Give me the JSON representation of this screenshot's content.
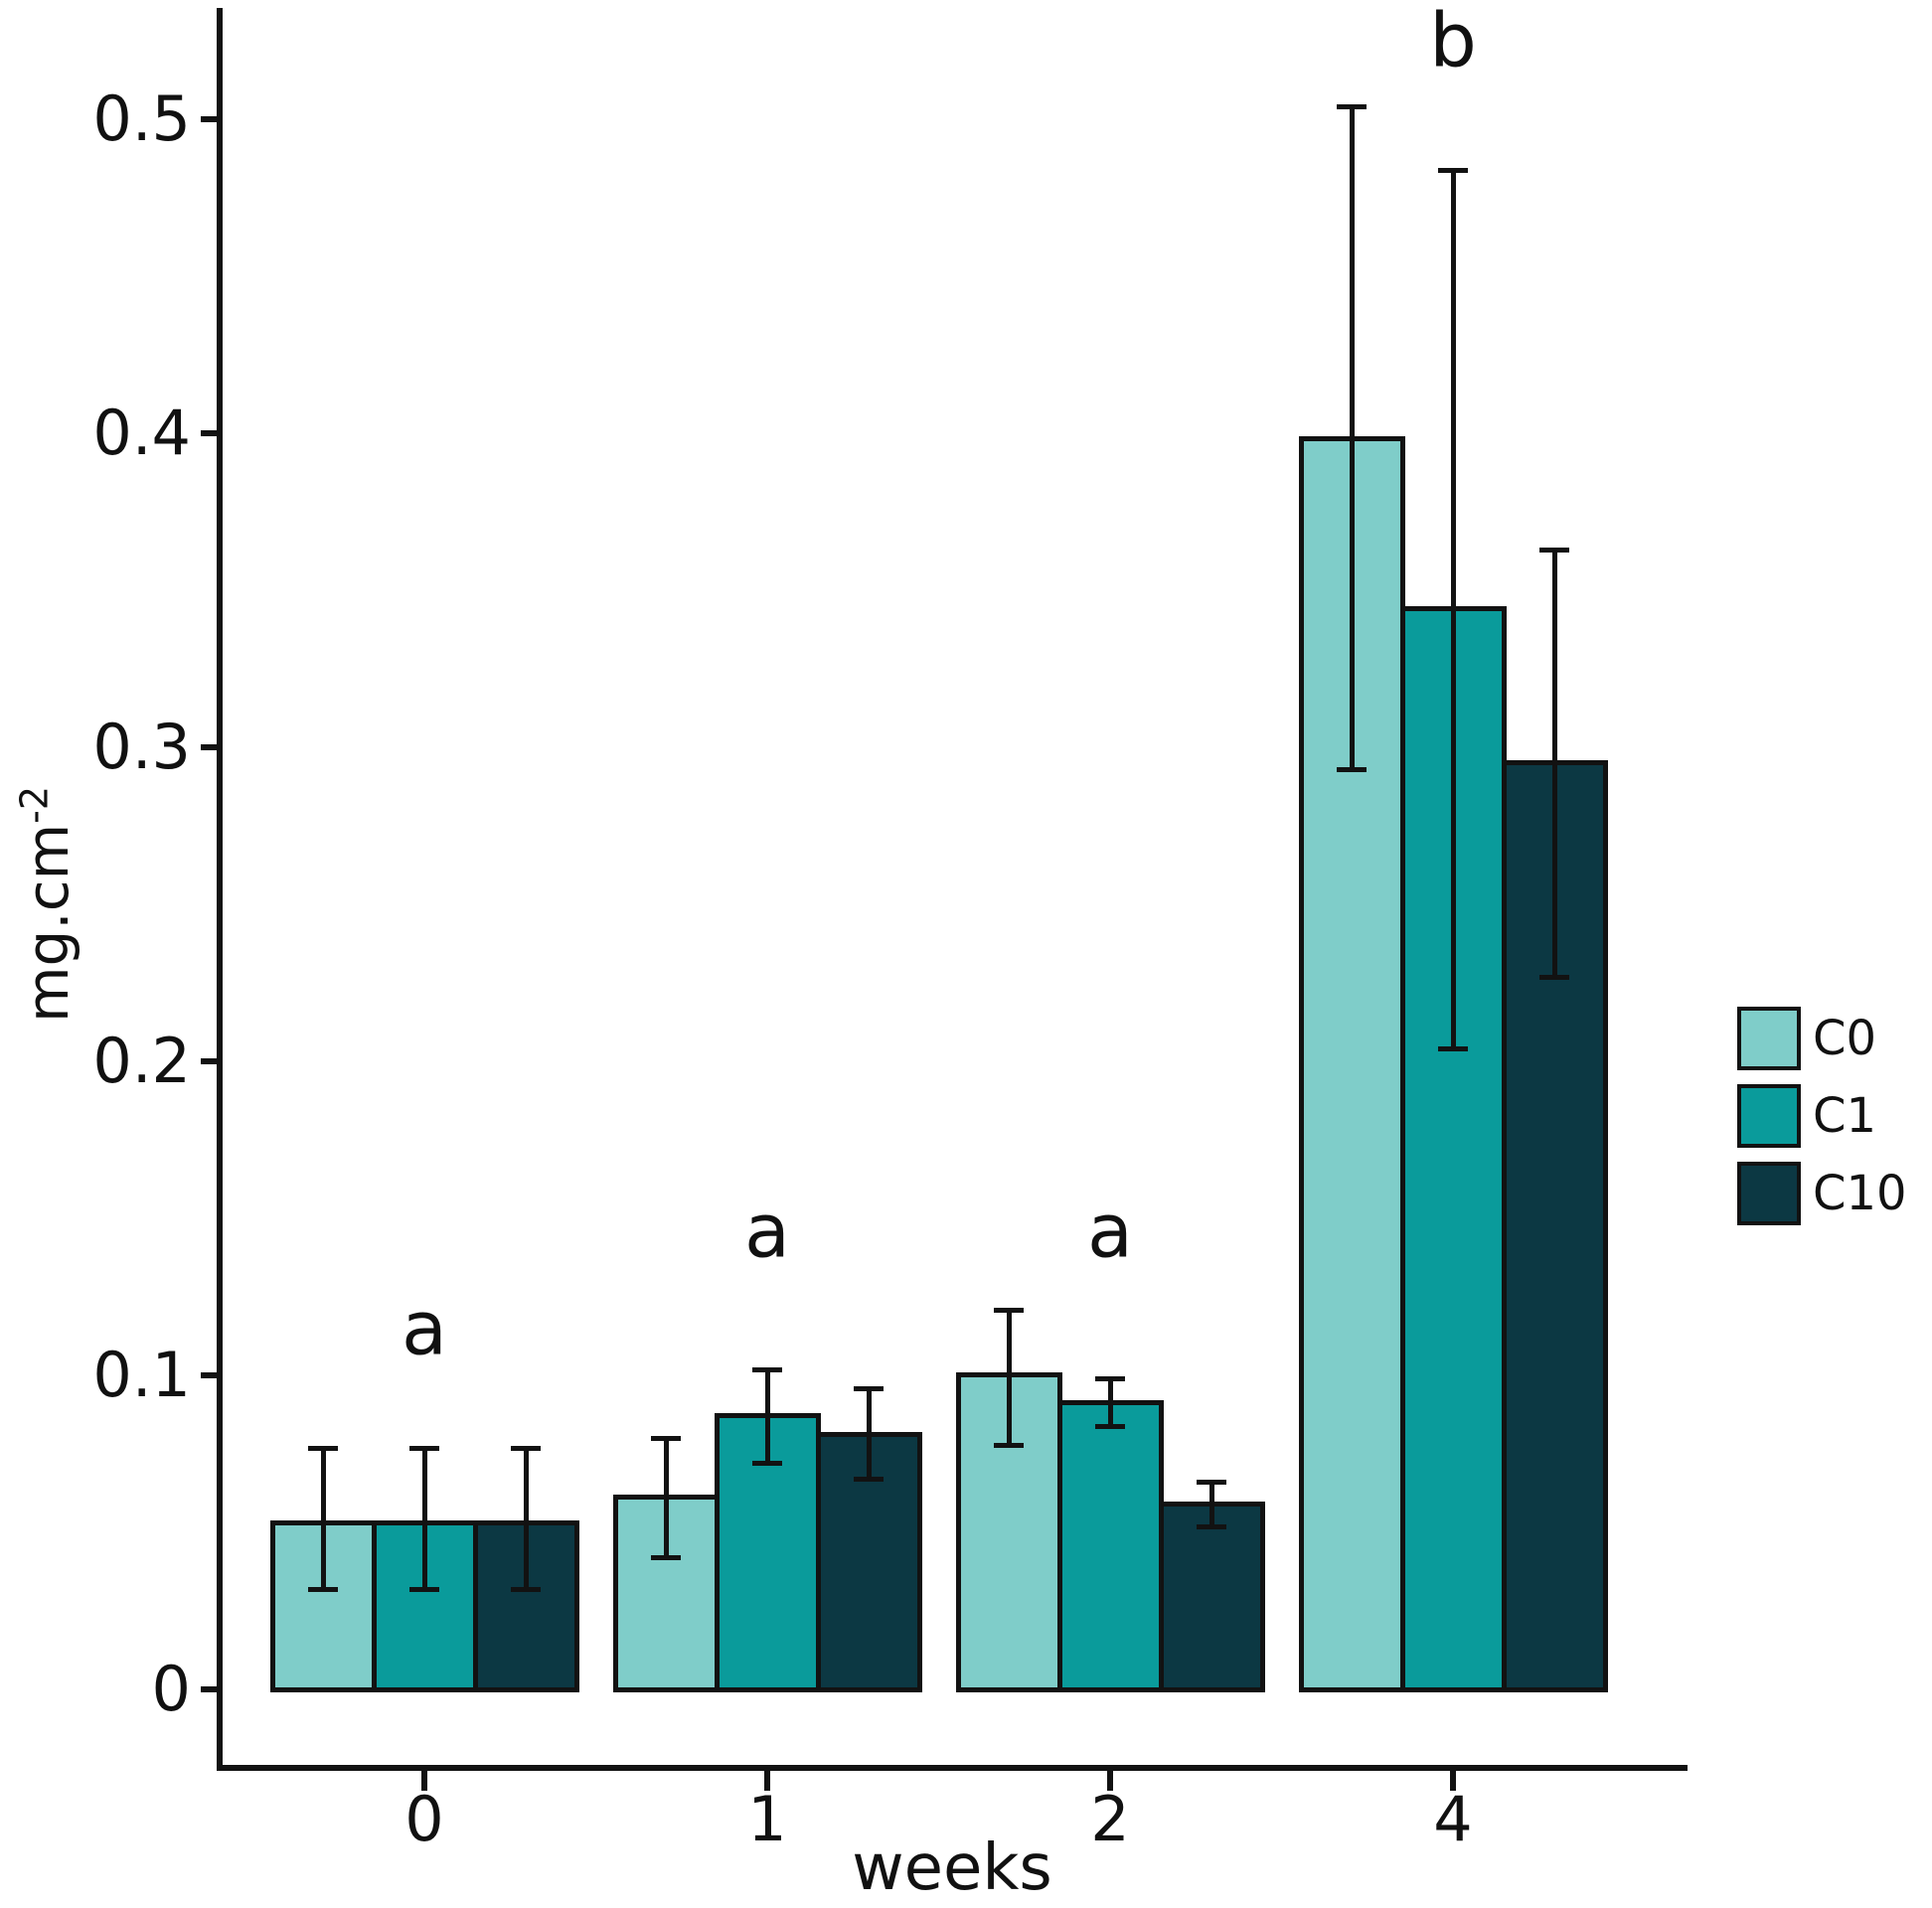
{
  "chart_data": {
    "type": "bar",
    "title": "",
    "xlabel": "weeks",
    "ylabel": {
      "base": "mg.cm",
      "exponent": "-2"
    },
    "categories": [
      "0",
      "1",
      "2",
      "4"
    ],
    "series": [
      {
        "name": "C0",
        "color": "#7fcdc9",
        "values": [
          0.053,
          0.061,
          0.1,
          0.398
        ],
        "err_low": [
          0.032,
          0.042,
          0.078,
          0.293
        ],
        "err_high": [
          0.077,
          0.08,
          0.121,
          0.504
        ]
      },
      {
        "name": "C1",
        "color": "#0a9b9b",
        "values": [
          0.053,
          0.087,
          0.091,
          0.344
        ],
        "err_low": [
          0.032,
          0.072,
          0.084,
          0.204
        ],
        "err_high": [
          0.077,
          0.102,
          0.099,
          0.484
        ]
      },
      {
        "name": "C10",
        "color": "#0c3843",
        "values": [
          0.053,
          0.081,
          0.059,
          0.295
        ],
        "err_low": [
          0.032,
          0.067,
          0.052,
          0.227
        ],
        "err_high": [
          0.077,
          0.096,
          0.066,
          0.363
        ]
      }
    ],
    "significance_labels": [
      {
        "category": "0",
        "text": "a",
        "y": 0.115
      },
      {
        "category": "1",
        "text": "a",
        "y": 0.146
      },
      {
        "category": "2",
        "text": "a",
        "y": 0.146
      },
      {
        "category": "4",
        "text": "b",
        "y": 0.525
      }
    ],
    "y_ticks": [
      {
        "value": 0.0,
        "label": "0"
      },
      {
        "value": 0.1,
        "label": "0.1"
      },
      {
        "value": 0.2,
        "label": "0.2"
      },
      {
        "value": 0.3,
        "label": "0.3"
      },
      {
        "value": 0.4,
        "label": "0.4"
      },
      {
        "value": 0.5,
        "label": "0.5"
      }
    ],
    "ylim": [
      0,
      0.56
    ],
    "grid": false,
    "legend_position": "right",
    "bar_outline_color": "#121212",
    "error_bar_color": "#121212",
    "axis_color": "#121212",
    "background_color": "#ffffff"
  }
}
